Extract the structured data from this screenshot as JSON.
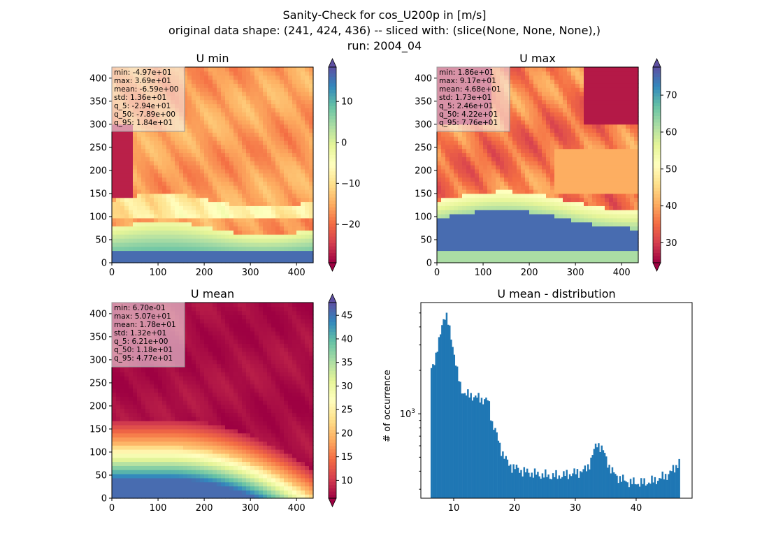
{
  "figure": {
    "title_lines": [
      "Sanity-Check for cos_U200p in [m/s]",
      "original data shape: (241, 424, 436) -- sliced with: (slice(None, None, None),)",
      "run: 2004_04"
    ]
  },
  "chart_data": [
    {
      "type": "heatmap",
      "title": "U min",
      "colormap": "Spectral",
      "xlim": [
        0,
        436
      ],
      "ylim": [
        0,
        424
      ],
      "xticks": [
        0,
        100,
        200,
        300,
        400
      ],
      "yticks": [
        0,
        50,
        100,
        150,
        200,
        250,
        300,
        350,
        400
      ],
      "colorbar": {
        "vmin": -29.4,
        "vmax": 18.4,
        "ticks": [
          -20,
          -10,
          0,
          10
        ],
        "extend": "both"
      },
      "stats": [
        "min: -4.97e+01",
        "max: 3.69e+01",
        "mean: -6.59e+00",
        "std: 1.36e+01",
        "q_5: -2.94e+01",
        "q_50: -7.89e+00",
        "q_95: 1.84e+01"
      ]
    },
    {
      "type": "heatmap",
      "title": "U max",
      "colormap": "Spectral",
      "xlim": [
        0,
        436
      ],
      "ylim": [
        0,
        424
      ],
      "xticks": [
        0,
        100,
        200,
        300,
        400
      ],
      "yticks": [
        0,
        50,
        100,
        150,
        200,
        250,
        300,
        350,
        400
      ],
      "colorbar": {
        "vmin": 24.6,
        "vmax": 77.6,
        "ticks": [
          30,
          40,
          50,
          60,
          70
        ],
        "extend": "both"
      },
      "stats": [
        "min: 1.86e+01",
        "max: 9.17e+01",
        "mean: 4.68e+01",
        "std: 1.73e+01",
        "q_5: 2.46e+01",
        "q_50: 4.22e+01",
        "q_95: 7.76e+01"
      ]
    },
    {
      "type": "heatmap",
      "title": "U mean",
      "colormap": "Spectral",
      "xlim": [
        0,
        436
      ],
      "ylim": [
        0,
        424
      ],
      "xticks": [
        0,
        100,
        200,
        300,
        400
      ],
      "yticks": [
        0,
        50,
        100,
        150,
        200,
        250,
        300,
        350,
        400
      ],
      "colorbar": {
        "vmin": 6.21,
        "vmax": 47.7,
        "ticks": [
          10,
          15,
          20,
          25,
          30,
          35,
          40,
          45
        ],
        "extend": "both"
      },
      "stats": [
        "min: 6.70e-01",
        "max: 5.07e+01",
        "mean: 1.78e+01",
        "std: 1.32e+01",
        "q_5: 6.21e+00",
        "q_50: 1.18e+01",
        "q_95: 4.77e+01"
      ]
    },
    {
      "type": "bar",
      "title": "U mean - distribution",
      "xlabel": "",
      "ylabel": "# of occurrence",
      "ylog": true,
      "xlim": [
        4.6,
        49.2
      ],
      "xticks": [
        10,
        20,
        30,
        40
      ],
      "yticks_major": [
        1000
      ],
      "ytick_label": "10^3",
      "ylim": [
        260,
        5900
      ],
      "bin_width": 0.25,
      "bar_color": "#1f77b4",
      "histogram": [
        [
          6.2,
          2000
        ],
        [
          6.7,
          2300
        ],
        [
          7.2,
          2600
        ],
        [
          7.7,
          3300
        ],
        [
          8.2,
          4500
        ],
        [
          8.7,
          4900
        ],
        [
          9.2,
          4000
        ],
        [
          9.7,
          3200
        ],
        [
          10.2,
          2400
        ],
        [
          10.7,
          1800
        ],
        [
          11.2,
          1500
        ],
        [
          11.7,
          1400
        ],
        [
          12.2,
          1350
        ],
        [
          12.7,
          1350
        ],
        [
          13.2,
          1330
        ],
        [
          13.7,
          1300
        ],
        [
          14.2,
          1280
        ],
        [
          14.7,
          1260
        ],
        [
          15.2,
          1250
        ],
        [
          15.7,
          1230
        ],
        [
          16.2,
          900
        ],
        [
          16.7,
          800
        ],
        [
          17.2,
          680
        ],
        [
          17.7,
          580
        ],
        [
          18.2,
          520
        ],
        [
          18.7,
          470
        ],
        [
          19.2,
          440
        ],
        [
          19.7,
          430
        ],
        [
          20.2,
          420
        ],
        [
          21,
          405
        ],
        [
          22,
          395
        ],
        [
          23,
          385
        ],
        [
          24,
          380
        ],
        [
          25,
          375
        ],
        [
          26,
          370
        ],
        [
          27,
          372
        ],
        [
          28,
          375
        ],
        [
          29,
          382
        ],
        [
          30,
          390
        ],
        [
          31,
          400
        ],
        [
          31.7,
          410
        ],
        [
          32.2,
          440
        ],
        [
          32.7,
          500
        ],
        [
          33.2,
          570
        ],
        [
          33.6,
          630
        ],
        [
          34.0,
          600
        ],
        [
          34.5,
          560
        ],
        [
          35.0,
          500
        ],
        [
          35.5,
          440
        ],
        [
          36.0,
          400
        ],
        [
          36.5,
          380
        ],
        [
          37.2,
          360
        ],
        [
          38,
          345
        ],
        [
          39,
          335
        ],
        [
          40,
          332
        ],
        [
          41,
          332
        ],
        [
          42,
          336
        ],
        [
          43,
          345
        ],
        [
          44,
          358
        ],
        [
          45,
          375
        ],
        [
          46,
          405
        ],
        [
          46.7,
          440
        ],
        [
          47.1,
          480
        ]
      ]
    }
  ]
}
